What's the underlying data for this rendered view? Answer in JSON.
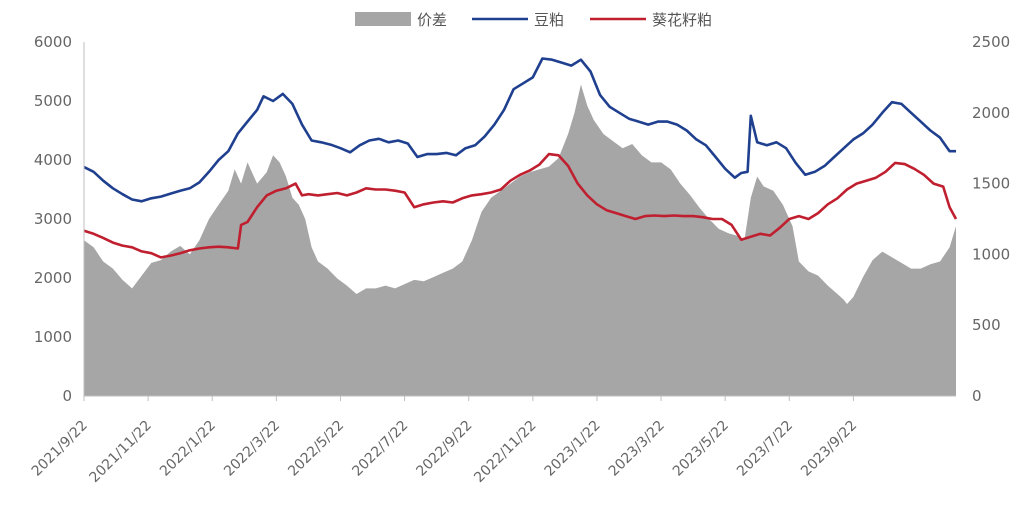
{
  "chart_data": {
    "type": "area+line",
    "title": "",
    "xlabel": "",
    "ylabel": "",
    "ylim_left": [
      0,
      6000
    ],
    "ylim_right": [
      0,
      2500
    ],
    "yticks_left": [
      "0",
      "1000",
      "2000",
      "3000",
      "4000",
      "5000",
      "6000"
    ],
    "yticks_right": [
      "0",
      "500",
      "1000",
      "1500",
      "2000",
      "2500"
    ],
    "x_tick_labels": [
      "2021/9/22",
      "2021/11/22",
      "2022/1/22",
      "2022/3/22",
      "2022/5/22",
      "2022/7/22",
      "2022/9/22",
      "2022/11/22",
      "2023/1/22",
      "2023/3/22",
      "2023/5/22",
      "2023/7/22",
      "2023/9/22"
    ],
    "x_domain_months": [
      0,
      25
    ],
    "grid": false,
    "legend_position": "top",
    "series": [
      {
        "name": "价差",
        "kind": "area",
        "axis": "right",
        "color": "#a6a6a6",
        "points": [
          [
            0.0,
            1100
          ],
          [
            0.3,
            1050
          ],
          [
            0.6,
            950
          ],
          [
            0.9,
            900
          ],
          [
            1.2,
            820
          ],
          [
            1.5,
            760
          ],
          [
            1.8,
            850
          ],
          [
            2.1,
            940
          ],
          [
            2.4,
            960
          ],
          [
            2.7,
            1020
          ],
          [
            3.0,
            1060
          ],
          [
            3.3,
            1000
          ],
          [
            3.6,
            1100
          ],
          [
            3.9,
            1250
          ],
          [
            4.2,
            1350
          ],
          [
            4.5,
            1450
          ],
          [
            4.7,
            1600
          ],
          [
            4.9,
            1500
          ],
          [
            5.1,
            1650
          ],
          [
            5.4,
            1500
          ],
          [
            5.7,
            1580
          ],
          [
            5.9,
            1700
          ],
          [
            6.1,
            1650
          ],
          [
            6.3,
            1550
          ],
          [
            6.5,
            1400
          ],
          [
            6.7,
            1350
          ],
          [
            6.9,
            1250
          ],
          [
            7.1,
            1050
          ],
          [
            7.3,
            950
          ],
          [
            7.6,
            900
          ],
          [
            7.9,
            830
          ],
          [
            8.2,
            780
          ],
          [
            8.5,
            720
          ],
          [
            8.8,
            760
          ],
          [
            9.1,
            760
          ],
          [
            9.4,
            780
          ],
          [
            9.7,
            760
          ],
          [
            10.0,
            790
          ],
          [
            10.3,
            820
          ],
          [
            10.6,
            810
          ],
          [
            10.9,
            840
          ],
          [
            11.2,
            870
          ],
          [
            11.5,
            900
          ],
          [
            11.8,
            950
          ],
          [
            12.1,
            1100
          ],
          [
            12.4,
            1300
          ],
          [
            12.7,
            1400
          ],
          [
            13.0,
            1450
          ],
          [
            13.3,
            1500
          ],
          [
            13.6,
            1550
          ],
          [
            13.9,
            1580
          ],
          [
            14.2,
            1600
          ],
          [
            14.5,
            1620
          ],
          [
            14.8,
            1680
          ],
          [
            15.1,
            1850
          ],
          [
            15.3,
            2000
          ],
          [
            15.5,
            2200
          ],
          [
            15.7,
            2050
          ],
          [
            15.9,
            1950
          ],
          [
            16.2,
            1850
          ],
          [
            16.5,
            1800
          ],
          [
            16.8,
            1750
          ],
          [
            17.1,
            1780
          ],
          [
            17.4,
            1700
          ],
          [
            17.7,
            1650
          ],
          [
            18.0,
            1650
          ],
          [
            18.3,
            1600
          ],
          [
            18.6,
            1500
          ],
          [
            18.9,
            1420
          ],
          [
            19.2,
            1330
          ],
          [
            19.5,
            1250
          ],
          [
            19.8,
            1180
          ],
          [
            20.1,
            1150
          ],
          [
            20.4,
            1130
          ],
          [
            20.6,
            1100
          ],
          [
            20.8,
            1400
          ],
          [
            21.0,
            1550
          ],
          [
            21.2,
            1480
          ],
          [
            21.5,
            1450
          ],
          [
            21.8,
            1350
          ],
          [
            22.1,
            1200
          ],
          [
            22.3,
            950
          ],
          [
            22.6,
            880
          ],
          [
            22.9,
            850
          ],
          [
            23.2,
            780
          ],
          [
            23.5,
            720
          ],
          [
            23.7,
            680
          ],
          [
            23.8,
            650
          ],
          [
            24.0,
            700
          ],
          [
            24.3,
            840
          ],
          [
            24.6,
            960
          ],
          [
            24.9,
            1020
          ],
          [
            25.2,
            980
          ],
          [
            25.5,
            940
          ],
          [
            25.8,
            900
          ],
          [
            26.1,
            900
          ],
          [
            26.4,
            930
          ],
          [
            26.7,
            950
          ],
          [
            27.0,
            1050
          ],
          [
            27.2,
            1200
          ]
        ]
      },
      {
        "name": "豆粕",
        "kind": "line",
        "axis": "left",
        "color": "#1f3f8f",
        "points": [
          [
            0.0,
            3880
          ],
          [
            0.3,
            3800
          ],
          [
            0.6,
            3650
          ],
          [
            0.9,
            3520
          ],
          [
            1.2,
            3420
          ],
          [
            1.5,
            3330
          ],
          [
            1.8,
            3300
          ],
          [
            2.1,
            3350
          ],
          [
            2.4,
            3380
          ],
          [
            2.7,
            3430
          ],
          [
            3.0,
            3480
          ],
          [
            3.3,
            3520
          ],
          [
            3.6,
            3620
          ],
          [
            3.9,
            3800
          ],
          [
            4.2,
            4000
          ],
          [
            4.5,
            4150
          ],
          [
            4.8,
            4450
          ],
          [
            5.1,
            4650
          ],
          [
            5.4,
            4850
          ],
          [
            5.6,
            5080
          ],
          [
            5.9,
            5000
          ],
          [
            6.2,
            5120
          ],
          [
            6.5,
            4950
          ],
          [
            6.8,
            4600
          ],
          [
            7.1,
            4330
          ],
          [
            7.4,
            4300
          ],
          [
            7.7,
            4260
          ],
          [
            8.0,
            4200
          ],
          [
            8.3,
            4130
          ],
          [
            8.6,
            4250
          ],
          [
            8.9,
            4330
          ],
          [
            9.2,
            4360
          ],
          [
            9.5,
            4300
          ],
          [
            9.8,
            4330
          ],
          [
            10.1,
            4280
          ],
          [
            10.4,
            4050
          ],
          [
            10.7,
            4100
          ],
          [
            11.0,
            4100
          ],
          [
            11.3,
            4120
          ],
          [
            11.6,
            4080
          ],
          [
            11.9,
            4200
          ],
          [
            12.2,
            4250
          ],
          [
            12.5,
            4400
          ],
          [
            12.8,
            4600
          ],
          [
            13.1,
            4850
          ],
          [
            13.4,
            5200
          ],
          [
            13.7,
            5300
          ],
          [
            14.0,
            5400
          ],
          [
            14.3,
            5720
          ],
          [
            14.6,
            5700
          ],
          [
            14.9,
            5650
          ],
          [
            15.2,
            5600
          ],
          [
            15.5,
            5700
          ],
          [
            15.8,
            5500
          ],
          [
            16.1,
            5100
          ],
          [
            16.4,
            4900
          ],
          [
            16.7,
            4800
          ],
          [
            17.0,
            4700
          ],
          [
            17.3,
            4650
          ],
          [
            17.6,
            4600
          ],
          [
            17.9,
            4650
          ],
          [
            18.2,
            4650
          ],
          [
            18.5,
            4600
          ],
          [
            18.8,
            4500
          ],
          [
            19.1,
            4350
          ],
          [
            19.4,
            4250
          ],
          [
            19.7,
            4050
          ],
          [
            20.0,
            3850
          ],
          [
            20.3,
            3700
          ],
          [
            20.5,
            3780
          ],
          [
            20.7,
            3800
          ],
          [
            20.8,
            4750
          ],
          [
            21.0,
            4300
          ],
          [
            21.3,
            4250
          ],
          [
            21.6,
            4300
          ],
          [
            21.9,
            4200
          ],
          [
            22.2,
            3950
          ],
          [
            22.5,
            3750
          ],
          [
            22.8,
            3800
          ],
          [
            23.1,
            3900
          ],
          [
            23.4,
            4050
          ],
          [
            23.7,
            4200
          ],
          [
            24.0,
            4350
          ],
          [
            24.3,
            4450
          ],
          [
            24.6,
            4600
          ],
          [
            24.9,
            4800
          ],
          [
            25.2,
            4980
          ],
          [
            25.5,
            4950
          ],
          [
            25.8,
            4800
          ],
          [
            26.1,
            4650
          ],
          [
            26.4,
            4500
          ],
          [
            26.7,
            4380
          ],
          [
            27.0,
            4150
          ],
          [
            27.2,
            4150
          ]
        ]
      },
      {
        "name": "葵花籽粕",
        "kind": "line",
        "axis": "left",
        "color": "#c01f2f",
        "points": [
          [
            0.0,
            2800
          ],
          [
            0.3,
            2750
          ],
          [
            0.6,
            2680
          ],
          [
            0.9,
            2600
          ],
          [
            1.2,
            2550
          ],
          [
            1.5,
            2520
          ],
          [
            1.8,
            2450
          ],
          [
            2.1,
            2420
          ],
          [
            2.4,
            2350
          ],
          [
            2.7,
            2380
          ],
          [
            3.0,
            2420
          ],
          [
            3.3,
            2470
          ],
          [
            3.6,
            2500
          ],
          [
            3.9,
            2520
          ],
          [
            4.2,
            2530
          ],
          [
            4.5,
            2520
          ],
          [
            4.8,
            2500
          ],
          [
            4.9,
            2900
          ],
          [
            5.1,
            2950
          ],
          [
            5.4,
            3200
          ],
          [
            5.7,
            3400
          ],
          [
            6.0,
            3480
          ],
          [
            6.3,
            3520
          ],
          [
            6.6,
            3600
          ],
          [
            6.8,
            3400
          ],
          [
            7.0,
            3420
          ],
          [
            7.3,
            3400
          ],
          [
            7.6,
            3420
          ],
          [
            7.9,
            3440
          ],
          [
            8.2,
            3400
          ],
          [
            8.5,
            3450
          ],
          [
            8.8,
            3520
          ],
          [
            9.1,
            3500
          ],
          [
            9.4,
            3500
          ],
          [
            9.7,
            3480
          ],
          [
            10.0,
            3450
          ],
          [
            10.3,
            3200
          ],
          [
            10.6,
            3250
          ],
          [
            10.9,
            3280
          ],
          [
            11.2,
            3300
          ],
          [
            11.5,
            3280
          ],
          [
            11.8,
            3350
          ],
          [
            12.1,
            3400
          ],
          [
            12.4,
            3420
          ],
          [
            12.7,
            3450
          ],
          [
            13.0,
            3500
          ],
          [
            13.3,
            3650
          ],
          [
            13.6,
            3750
          ],
          [
            13.9,
            3820
          ],
          [
            14.2,
            3920
          ],
          [
            14.5,
            4100
          ],
          [
            14.8,
            4080
          ],
          [
            15.1,
            3900
          ],
          [
            15.4,
            3600
          ],
          [
            15.7,
            3400
          ],
          [
            16.0,
            3250
          ],
          [
            16.3,
            3150
          ],
          [
            16.6,
            3100
          ],
          [
            16.9,
            3050
          ],
          [
            17.2,
            3000
          ],
          [
            17.5,
            3050
          ],
          [
            17.8,
            3060
          ],
          [
            18.1,
            3050
          ],
          [
            18.4,
            3060
          ],
          [
            18.7,
            3050
          ],
          [
            19.0,
            3050
          ],
          [
            19.3,
            3030
          ],
          [
            19.6,
            3000
          ],
          [
            19.9,
            3000
          ],
          [
            20.2,
            2900
          ],
          [
            20.5,
            2650
          ],
          [
            20.8,
            2700
          ],
          [
            21.1,
            2750
          ],
          [
            21.4,
            2720
          ],
          [
            21.7,
            2850
          ],
          [
            22.0,
            3000
          ],
          [
            22.3,
            3050
          ],
          [
            22.6,
            3000
          ],
          [
            22.9,
            3100
          ],
          [
            23.2,
            3250
          ],
          [
            23.5,
            3350
          ],
          [
            23.8,
            3500
          ],
          [
            24.1,
            3600
          ],
          [
            24.4,
            3650
          ],
          [
            24.7,
            3700
          ],
          [
            25.0,
            3800
          ],
          [
            25.3,
            3950
          ],
          [
            25.6,
            3930
          ],
          [
            25.9,
            3850
          ],
          [
            26.2,
            3750
          ],
          [
            26.5,
            3600
          ],
          [
            26.8,
            3550
          ],
          [
            27.0,
            3200
          ],
          [
            27.2,
            3000
          ]
        ]
      }
    ]
  }
}
